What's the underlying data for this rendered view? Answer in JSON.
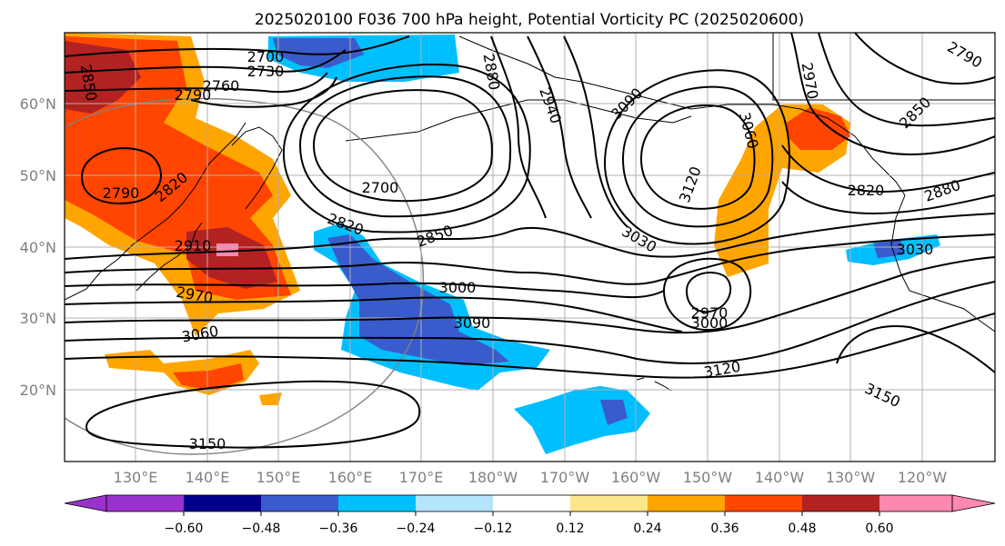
{
  "title": "2025020100 F036 700 hPa height, Potential Vorticity PC (2025020600)",
  "map": {
    "lat_labels": [
      "60°N",
      "50°N",
      "40°N",
      "30°N",
      "20°N"
    ],
    "lon_labels": [
      "130°E",
      "140°E",
      "150°E",
      "160°E",
      "170°E",
      "180°W",
      "170°W",
      "160°W",
      "150°W",
      "140°W",
      "130°W",
      "120°W"
    ],
    "contour_labels": [
      "2700",
      "2730",
      "2760",
      "2790",
      "2850",
      "2880",
      "2940",
      "3090",
      "3060",
      "2970",
      "2790",
      "2820",
      "2700",
      "2820",
      "2850",
      "3030",
      "3120",
      "2820",
      "2880",
      "3030",
      "2910",
      "2970",
      "3000",
      "3090",
      "2970",
      "3000",
      "3060",
      "3120",
      "3150",
      "3150",
      "2850",
      "2790"
    ]
  },
  "colorbar": {
    "ticks": [
      "−0.60",
      "−0.48",
      "−0.36",
      "−0.24",
      "−0.12",
      "0.12",
      "0.24",
      "0.36",
      "0.48",
      "0.60"
    ],
    "colors": [
      "#9932cc",
      "#00008b",
      "#3a5bcc",
      "#00bfff",
      "#b3e5fc",
      "#ffffff",
      "#fde68a",
      "#ffa500",
      "#ff4500",
      "#b22222",
      "#ff88b0"
    ]
  },
  "colors": {
    "contour": "#000000",
    "grid": "#999999",
    "coast": "#000000",
    "tick_text": "#7f7f7f"
  }
}
